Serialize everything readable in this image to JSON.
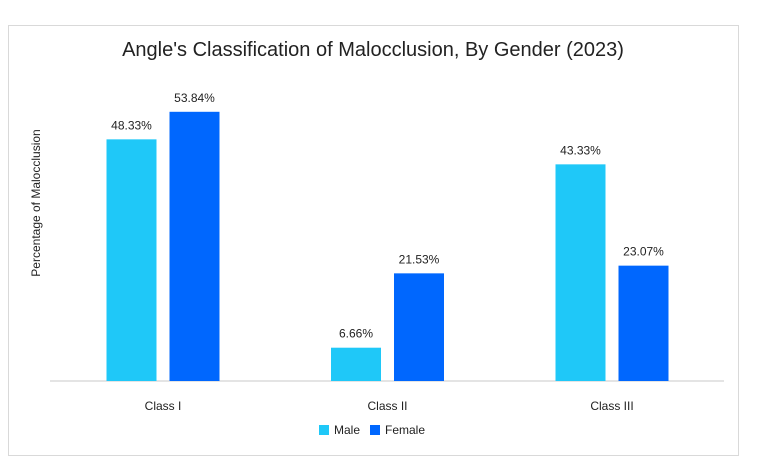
{
  "chart_data": {
    "type": "bar",
    "title": "Angle's Classification of Malocclusion, By Gender (2023)",
    "xlabel": "",
    "ylabel": "Percentage of Malocclusion",
    "categories": [
      "Class I",
      "Class II",
      "Class III"
    ],
    "series": [
      {
        "name": "Male",
        "color": "#1fc8f8",
        "values": [
          48.33,
          6.66,
          43.33
        ],
        "labels": [
          "48.33%",
          "6.66%",
          "43.33%"
        ]
      },
      {
        "name": "Female",
        "color": "#0067fe",
        "values": [
          53.84,
          21.53,
          23.07
        ],
        "labels": [
          "53.84%",
          "21.53%",
          "23.07%"
        ]
      }
    ],
    "ylim": [
      0,
      55
    ],
    "grid": false,
    "legend_position": "bottom"
  }
}
